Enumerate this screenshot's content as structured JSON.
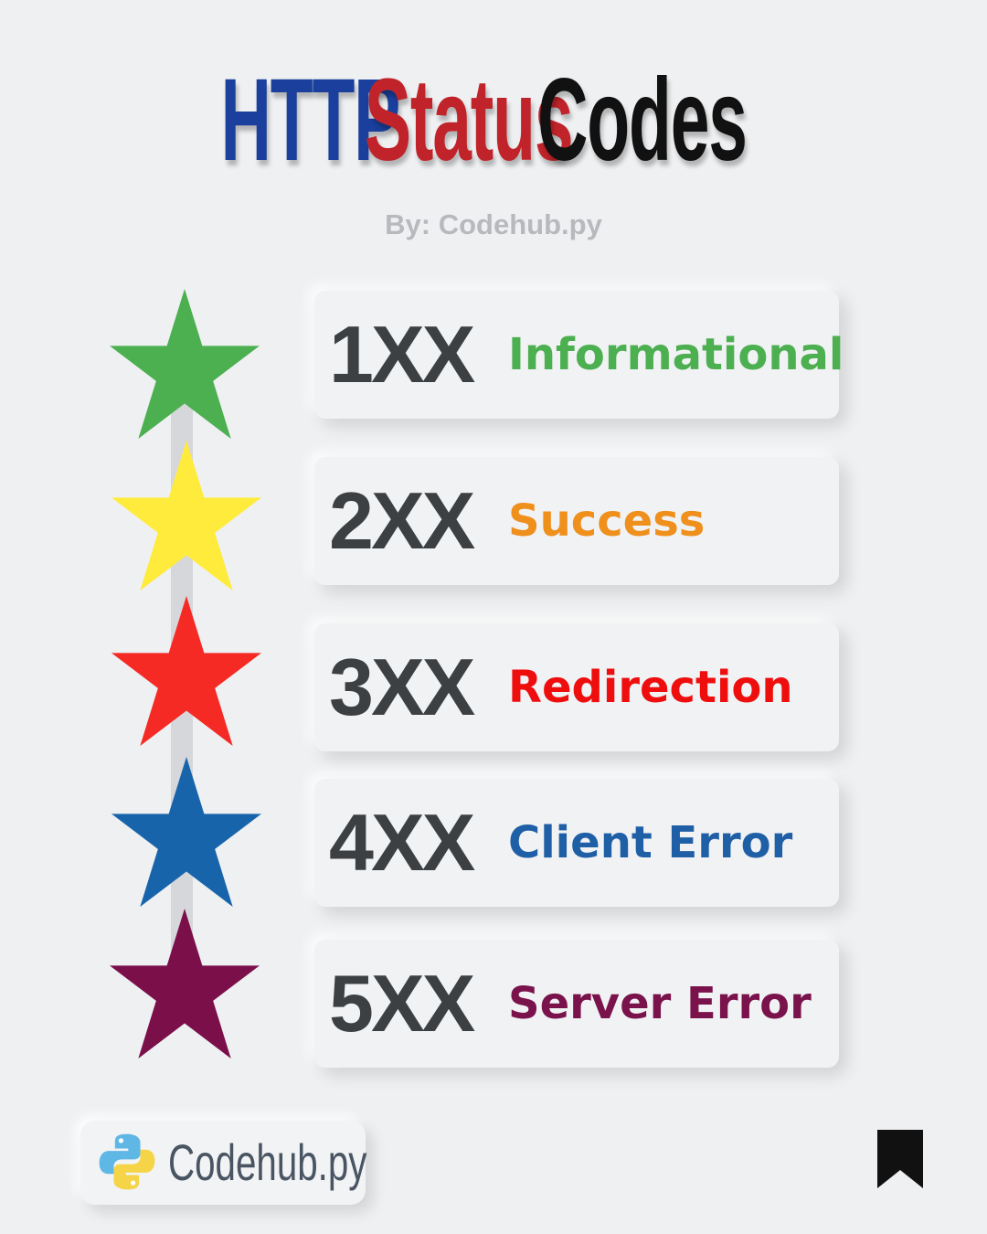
{
  "title": {
    "word1": "HTTP",
    "word2": "Status",
    "word3": "Codes",
    "color1": "#1a3f9c",
    "color2": "#c0242a",
    "color3": "#111111"
  },
  "byline": "By: Codehub.py",
  "items": [
    {
      "code": "1XX",
      "label": "Informational",
      "color": "#4caf50",
      "star_color": "#4caf50"
    },
    {
      "code": "2XX",
      "label": "Success",
      "color": "#ef8f1c",
      "star_color": "#ffeb3b"
    },
    {
      "code": "3XX",
      "label": "Redirection",
      "color": "#ee0e0e",
      "star_color": "#f52a25"
    },
    {
      "code": "4XX",
      "label": "Client Error",
      "color": "#1f5fa6",
      "star_color": "#1864ab"
    },
    {
      "code": "5XX",
      "label": "Server Error",
      "color": "#7a124b",
      "star_color": "#7a0f4a"
    }
  ],
  "brand": {
    "name": "Codehub.py",
    "logo_icon": "python-logo-icon"
  },
  "bookmark_icon": "bookmark-icon"
}
